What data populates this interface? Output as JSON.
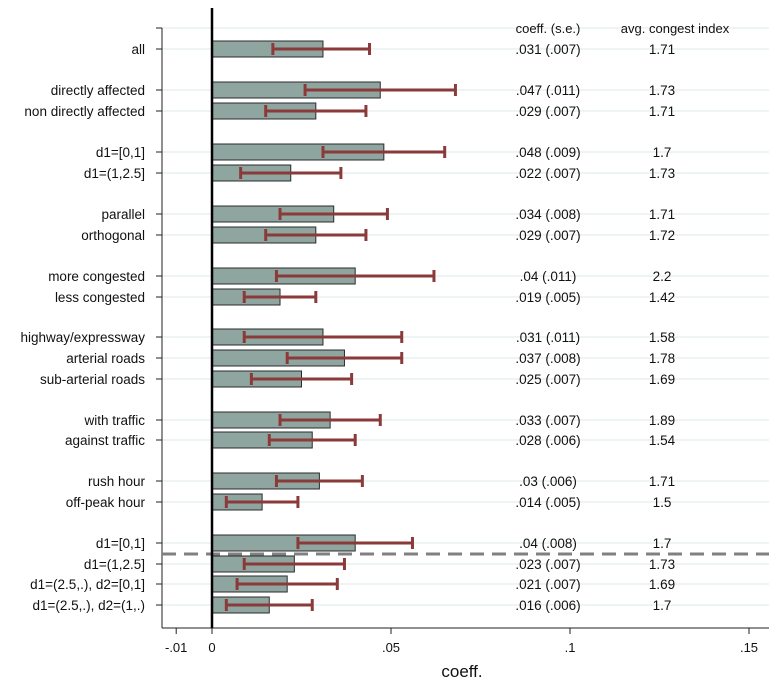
{
  "chart_data": {
    "type": "bar",
    "orientation": "horizontal",
    "xlabel": "coeff.",
    "xlim": [
      -0.01,
      0.155
    ],
    "xticks": [
      {
        "value": -0.01,
        "label": "-.01"
      },
      {
        "value": 0,
        "label": "0"
      },
      {
        "value": 0.05,
        "label": ".05"
      },
      {
        "value": 0.1,
        "label": ".1"
      },
      {
        "value": 0.15,
        "label": ".15"
      }
    ],
    "grid": true,
    "colors": {
      "bar": "#8fa6a0",
      "bar_edge": "#2b2b2b",
      "error": "#8b3a3a",
      "grid": "#e4ecec",
      "separator": "#808080"
    },
    "column_headers": {
      "coef": "coeff. (s.e.)",
      "index": "avg. congest index"
    },
    "separator_after_row": 17,
    "rows": [
      {
        "label": "all",
        "coef": 0.031,
        "lo": 0.017,
        "hi": 0.044,
        "coef_text": ".031 (.007)",
        "index_text": "1.71"
      },
      {
        "label": "directly affected",
        "coef": 0.047,
        "lo": 0.026,
        "hi": 0.068,
        "coef_text": ".047 (.011)",
        "index_text": "1.73"
      },
      {
        "label": "non directly affected",
        "coef": 0.029,
        "lo": 0.015,
        "hi": 0.043,
        "coef_text": ".029 (.007)",
        "index_text": "1.71"
      },
      {
        "label": "d1=[0,1]",
        "coef": 0.048,
        "lo": 0.031,
        "hi": 0.065,
        "coef_text": ".048 (.009)",
        "index_text": "1.7"
      },
      {
        "label": "d1=(1,2.5]",
        "coef": 0.022,
        "lo": 0.008,
        "hi": 0.036,
        "coef_text": ".022 (.007)",
        "index_text": "1.73"
      },
      {
        "label": "parallel",
        "coef": 0.034,
        "lo": 0.019,
        "hi": 0.049,
        "coef_text": ".034 (.008)",
        "index_text": "1.71"
      },
      {
        "label": "orthogonal",
        "coef": 0.029,
        "lo": 0.015,
        "hi": 0.043,
        "coef_text": ".029 (.007)",
        "index_text": "1.72"
      },
      {
        "label": "more congested",
        "coef": 0.04,
        "lo": 0.018,
        "hi": 0.062,
        "coef_text": ".04 (.011)",
        "index_text": "2.2"
      },
      {
        "label": "less congested",
        "coef": 0.019,
        "lo": 0.009,
        "hi": 0.029,
        "coef_text": ".019 (.005)",
        "index_text": "1.42"
      },
      {
        "label": "highway/expressway",
        "coef": 0.031,
        "lo": 0.009,
        "hi": 0.053,
        "coef_text": ".031 (.011)",
        "index_text": "1.58"
      },
      {
        "label": "arterial roads",
        "coef": 0.037,
        "lo": 0.021,
        "hi": 0.053,
        "coef_text": ".037 (.008)",
        "index_text": "1.78"
      },
      {
        "label": "sub-arterial roads",
        "coef": 0.025,
        "lo": 0.011,
        "hi": 0.039,
        "coef_text": ".025 (.007)",
        "index_text": "1.69"
      },
      {
        "label": "with traffic",
        "coef": 0.033,
        "lo": 0.019,
        "hi": 0.047,
        "coef_text": ".033 (.007)",
        "index_text": "1.89"
      },
      {
        "label": "against traffic",
        "coef": 0.028,
        "lo": 0.016,
        "hi": 0.04,
        "coef_text": ".028 (.006)",
        "index_text": "1.54"
      },
      {
        "label": "rush hour",
        "coef": 0.03,
        "lo": 0.018,
        "hi": 0.042,
        "coef_text": ".03 (.006)",
        "index_text": "1.71"
      },
      {
        "label": "off-peak hour",
        "coef": 0.014,
        "lo": 0.004,
        "hi": 0.024,
        "coef_text": ".014 (.005)",
        "index_text": "1.5"
      },
      {
        "label": "d1=[0,1]",
        "coef": 0.04,
        "lo": 0.024,
        "hi": 0.056,
        "coef_text": ".04 (.008)",
        "index_text": "1.7"
      },
      {
        "label": "d1=(1,2.5]",
        "coef": 0.023,
        "lo": 0.009,
        "hi": 0.037,
        "coef_text": ".023 (.007)",
        "index_text": "1.73"
      },
      {
        "label": "d1=(2.5,.), d2=[0,1]",
        "coef": 0.021,
        "lo": 0.007,
        "hi": 0.035,
        "coef_text": ".021 (.007)",
        "index_text": "1.69"
      },
      {
        "label": "d1=(2.5,.), d2=(1,.)",
        "coef": 0.016,
        "lo": 0.004,
        "hi": 0.028,
        "coef_text": ".016 (.006)",
        "index_text": "1.7"
      }
    ]
  }
}
